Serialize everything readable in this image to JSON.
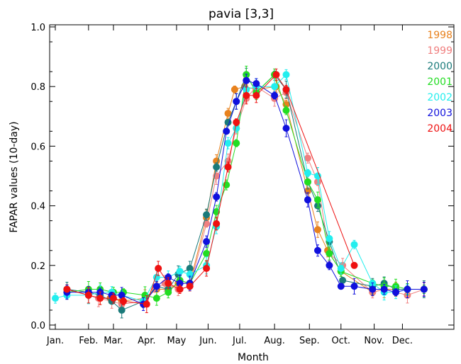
{
  "chart_data": {
    "type": "line",
    "title": "pavia [3,3]",
    "xlabel": "Month",
    "ylabel": "FAPAR values (10-day)",
    "ylim": [
      0,
      1.0
    ],
    "xlim": [
      0,
      12
    ],
    "x_ticks": [
      {
        "label": "Jan.",
        "value": 0.0
      },
      {
        "label": "Feb.",
        "value": 1.0
      },
      {
        "label": "Mar.",
        "value": 1.75
      },
      {
        "label": "Apr.",
        "value": 2.75
      },
      {
        "label": "May",
        "value": 3.65
      },
      {
        "label": "Jun.",
        "value": 4.6
      },
      {
        "label": "Jul.",
        "value": 5.55
      },
      {
        "label": "Aug.",
        "value": 6.6
      },
      {
        "label": "Sep.",
        "value": 7.65
      },
      {
        "label": "Oct.",
        "value": 8.6
      },
      {
        "label": "Nov.",
        "value": 9.6
      },
      {
        "label": "Dec.",
        "value": 10.45
      }
    ],
    "y_ticks": [
      "0.0",
      "0.2",
      "0.4",
      "0.6",
      "0.8",
      "1.0"
    ],
    "y_tick_values": [
      0,
      0.2,
      0.4,
      0.6,
      0.8,
      1.0
    ],
    "legend_position": "top-right",
    "grid": false,
    "series": [
      {
        "name": "1998",
        "color": "#e8821e",
        "x": [
          0.35,
          1.0,
          1.35,
          1.65,
          2.0,
          2.7,
          3.05,
          3.4,
          3.7,
          4.05,
          4.55,
          4.85,
          5.2,
          5.4,
          5.7,
          6.05,
          6.65,
          6.95,
          7.6,
          7.9,
          8.2,
          8.6,
          9.55,
          9.9,
          10.25,
          10.6,
          11.1
        ],
        "y": [
          0.12,
          0.1,
          0.09,
          0.09,
          0.08,
          0.09,
          0.12,
          0.12,
          0.14,
          0.14,
          0.36,
          0.55,
          0.71,
          0.79,
          0.8,
          0.79,
          0.8,
          0.74,
          0.45,
          0.32,
          0.25,
          0.18,
          0.11,
          0.12,
          0.12,
          0.12,
          0.12
        ]
      },
      {
        "name": "1999",
        "color": "#f08080",
        "x": [
          0.35,
          1.0,
          1.3,
          1.7,
          2.0,
          2.7,
          3.0,
          3.3,
          3.7,
          4.05,
          4.55,
          4.85,
          5.2,
          5.45,
          5.75,
          6.05,
          6.6,
          6.95,
          7.6,
          7.9,
          8.25,
          8.65,
          9.55,
          9.9,
          10.25,
          10.6,
          11.1
        ],
        "y": [
          0.12,
          0.1,
          0.09,
          0.08,
          0.07,
          0.08,
          0.12,
          0.14,
          0.12,
          0.13,
          0.34,
          0.5,
          0.55,
          0.66,
          0.76,
          0.8,
          0.76,
          0.78,
          0.56,
          0.48,
          0.24,
          0.2,
          0.11,
          0.12,
          0.11,
          0.1,
          0.12
        ]
      },
      {
        "name": "2000",
        "color": "#1a7a7a",
        "x": [
          0.35,
          1.0,
          1.35,
          1.7,
          2.0,
          2.65,
          3.05,
          3.4,
          3.7,
          4.05,
          4.55,
          4.85,
          5.2,
          5.45,
          5.75,
          6.05,
          6.6,
          6.95,
          7.6,
          7.9,
          8.25,
          8.65,
          9.55,
          9.9,
          10.25,
          10.6,
          11.1
        ],
        "y": [
          0.12,
          0.11,
          0.1,
          0.08,
          0.05,
          0.08,
          0.13,
          0.12,
          0.17,
          0.19,
          0.37,
          0.53,
          0.68,
          0.75,
          0.84,
          0.78,
          0.84,
          0.79,
          0.48,
          0.4,
          0.28,
          0.15,
          0.13,
          0.14,
          0.12,
          0.12,
          0.12
        ]
      },
      {
        "name": "2001",
        "color": "#22dd22",
        "x": [
          0.35,
          1.0,
          1.35,
          1.75,
          2.05,
          2.7,
          3.05,
          3.4,
          3.75,
          4.05,
          4.55,
          4.85,
          5.15,
          5.45,
          5.75,
          6.05,
          6.6,
          6.95,
          7.6,
          7.9,
          8.25,
          8.6,
          9.55,
          9.9,
          10.25,
          10.6,
          11.1
        ],
        "y": [
          0.11,
          0.12,
          0.12,
          0.11,
          0.11,
          0.1,
          0.09,
          0.11,
          0.15,
          0.14,
          0.24,
          0.38,
          0.47,
          0.61,
          0.84,
          0.78,
          0.84,
          0.72,
          0.48,
          0.42,
          0.24,
          0.18,
          0.14,
          0.13,
          0.13,
          0.12,
          0.12
        ]
      },
      {
        "name": "2002",
        "color": "#22eeee",
        "x": [
          0.0,
          0.35,
          1.0,
          1.35,
          1.7,
          2.0,
          2.65,
          3.05,
          3.4,
          3.75,
          4.05,
          4.55,
          4.85,
          5.2,
          5.45,
          5.75,
          6.05,
          6.6,
          6.95,
          7.6,
          7.9,
          8.25,
          8.6,
          9.0,
          9.55,
          9.9,
          10.25,
          10.6
        ],
        "y": [
          0.09,
          0.1,
          0.1,
          0.11,
          0.11,
          0.1,
          0.08,
          0.16,
          0.16,
          0.18,
          0.17,
          0.2,
          0.33,
          0.61,
          0.66,
          0.79,
          0.8,
          0.8,
          0.84,
          0.51,
          0.5,
          0.29,
          0.19,
          0.27,
          0.14,
          0.11,
          0.11,
          0.12
        ]
      },
      {
        "name": "2003",
        "color": "#1010dd",
        "x": [
          0.35,
          1.0,
          1.35,
          1.7,
          2.0,
          2.65,
          3.05,
          3.4,
          3.75,
          4.05,
          4.55,
          4.85,
          5.15,
          5.45,
          5.75,
          6.05,
          6.6,
          6.95,
          7.6,
          7.9,
          8.25,
          8.6,
          9.0,
          9.55,
          9.9,
          10.25,
          10.6,
          11.1
        ],
        "y": [
          0.11,
          0.11,
          0.11,
          0.1,
          0.1,
          0.07,
          0.13,
          0.16,
          0.14,
          0.14,
          0.28,
          0.43,
          0.65,
          0.75,
          0.82,
          0.81,
          0.77,
          0.66,
          0.42,
          0.25,
          0.2,
          0.13,
          0.13,
          0.12,
          0.12,
          0.11,
          0.12,
          0.12
        ]
      },
      {
        "name": "2004",
        "color": "#ee1111",
        "x": [
          0.35,
          1.0,
          1.35,
          1.75,
          2.05,
          2.75,
          3.1,
          3.4,
          3.75,
          4.05,
          4.55,
          4.85,
          5.2,
          5.45,
          5.75,
          6.05,
          6.65,
          6.95,
          9.0
        ],
        "y": [
          0.12,
          0.1,
          0.09,
          0.09,
          0.08,
          0.07,
          0.19,
          0.14,
          0.12,
          0.13,
          0.19,
          0.34,
          0.53,
          0.68,
          0.77,
          0.77,
          0.84,
          0.79,
          0.2
        ]
      }
    ]
  }
}
